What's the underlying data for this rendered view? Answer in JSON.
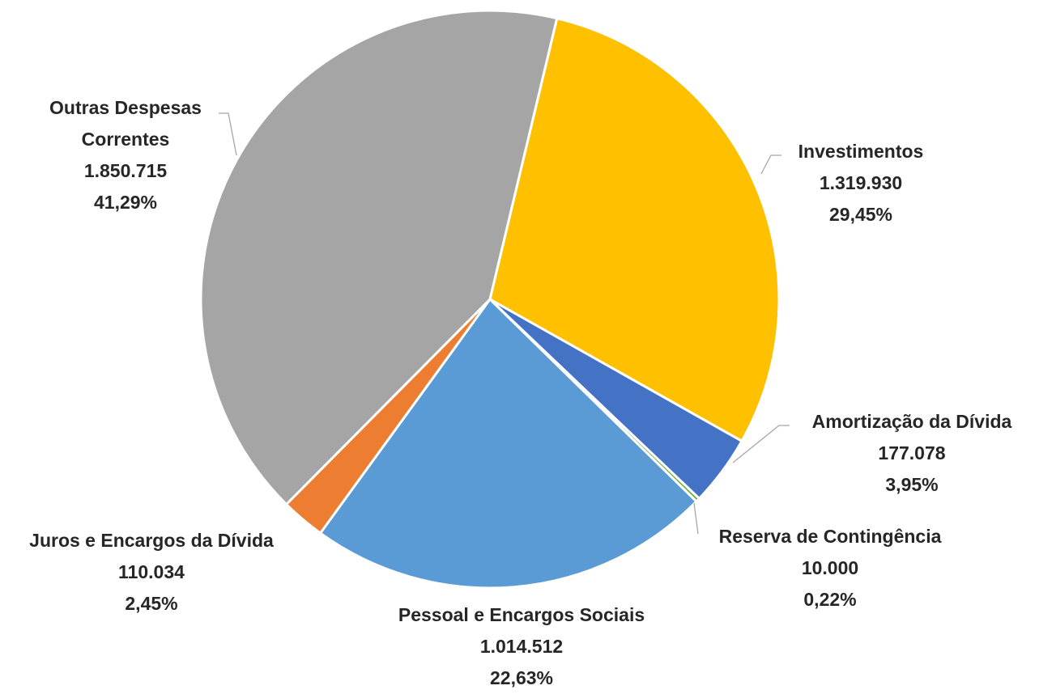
{
  "chart_data": {
    "type": "pie",
    "categories": [
      "Investimentos",
      "Amortização da Dívida",
      "Reserva de Contingência",
      "Pessoal e Encargos Sociais",
      "Juros e Encargos da Dívida",
      "Outras Despesas Correntes"
    ],
    "values": [
      1319930,
      177078,
      10000,
      1014512,
      110034,
      1850715
    ],
    "value_labels": [
      "1.319.930",
      "177.078",
      "10.000",
      "1.014.512",
      "110.034",
      "1.850.715"
    ],
    "percent_values": [
      29.45,
      3.95,
      0.22,
      22.63,
      2.45,
      41.29
    ],
    "percent_labels": [
      "29,45%",
      "3,95%",
      "0,22%",
      "22,63%",
      "2,45%",
      "41,29%"
    ],
    "colors": [
      "#FFC000",
      "#4472C4",
      "#70AD47",
      "#5B9BD5",
      "#ED7D31",
      "#A5A5A5"
    ]
  }
}
